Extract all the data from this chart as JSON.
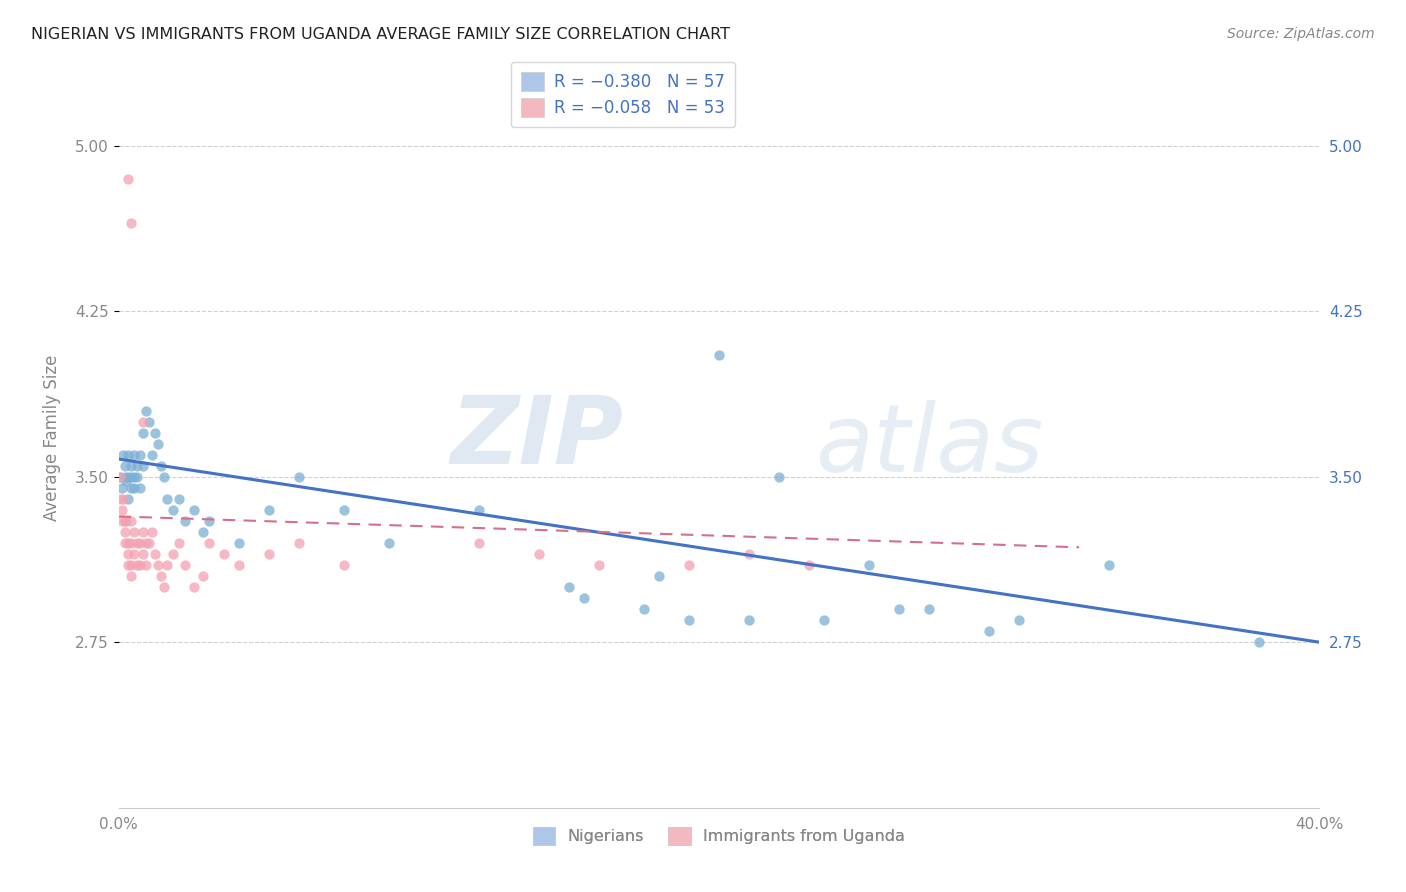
{
  "title": "NIGERIAN VS IMMIGRANTS FROM UGANDA AVERAGE FAMILY SIZE CORRELATION CHART",
  "source": "Source: ZipAtlas.com",
  "ylabel": "Average Family Size",
  "yticks": [
    2.75,
    3.5,
    4.25,
    5.0
  ],
  "xlim": [
    0.0,
    0.4
  ],
  "ylim": [
    2.0,
    5.35
  ],
  "bottom_legend": [
    "Nigerians",
    "Immigrants from Uganda"
  ],
  "bottom_legend_colors": [
    "#aec6e8",
    "#f4b8c1"
  ],
  "nigerians_x": [
    0.0005,
    0.001,
    0.0015,
    0.002,
    0.002,
    0.0025,
    0.003,
    0.003,
    0.003,
    0.004,
    0.004,
    0.004,
    0.005,
    0.005,
    0.005,
    0.006,
    0.006,
    0.007,
    0.007,
    0.008,
    0.008,
    0.009,
    0.01,
    0.011,
    0.012,
    0.013,
    0.014,
    0.015,
    0.016,
    0.018,
    0.02,
    0.022,
    0.025,
    0.028,
    0.03,
    0.04,
    0.05,
    0.06,
    0.075,
    0.09,
    0.12,
    0.15,
    0.175,
    0.2,
    0.22,
    0.25,
    0.27,
    0.3,
    0.33,
    0.155,
    0.18,
    0.19,
    0.21,
    0.235,
    0.26,
    0.29,
    0.38
  ],
  "nigerians_y": [
    3.5,
    3.45,
    3.6,
    3.5,
    3.55,
    3.48,
    3.6,
    3.5,
    3.4,
    3.55,
    3.45,
    3.5,
    3.6,
    3.5,
    3.45,
    3.55,
    3.5,
    3.6,
    3.45,
    3.55,
    3.7,
    3.8,
    3.75,
    3.6,
    3.7,
    3.65,
    3.55,
    3.5,
    3.4,
    3.35,
    3.4,
    3.3,
    3.35,
    3.25,
    3.3,
    3.2,
    3.35,
    3.5,
    3.35,
    3.2,
    3.35,
    3.0,
    2.9,
    4.05,
    3.5,
    3.1,
    2.9,
    2.85,
    3.1,
    2.95,
    3.05,
    2.85,
    2.85,
    2.85,
    2.9,
    2.8,
    2.75
  ],
  "uganda_x": [
    0.0003,
    0.0005,
    0.001,
    0.001,
    0.0015,
    0.002,
    0.002,
    0.002,
    0.0025,
    0.003,
    0.003,
    0.003,
    0.004,
    0.004,
    0.004,
    0.004,
    0.005,
    0.005,
    0.006,
    0.006,
    0.007,
    0.007,
    0.008,
    0.008,
    0.009,
    0.009,
    0.01,
    0.011,
    0.012,
    0.013,
    0.014,
    0.015,
    0.016,
    0.018,
    0.02,
    0.022,
    0.025,
    0.028,
    0.03,
    0.035,
    0.04,
    0.05,
    0.06,
    0.075,
    0.12,
    0.14,
    0.16,
    0.19,
    0.21,
    0.23,
    0.004,
    0.003,
    0.008
  ],
  "uganda_y": [
    3.5,
    3.4,
    3.35,
    3.3,
    3.4,
    3.3,
    3.25,
    3.2,
    3.3,
    3.2,
    3.15,
    3.1,
    3.3,
    3.2,
    3.1,
    3.05,
    3.25,
    3.15,
    3.2,
    3.1,
    3.2,
    3.1,
    3.25,
    3.15,
    3.2,
    3.1,
    3.2,
    3.25,
    3.15,
    3.1,
    3.05,
    3.0,
    3.1,
    3.15,
    3.2,
    3.1,
    3.0,
    3.05,
    3.2,
    3.15,
    3.1,
    3.15,
    3.2,
    3.1,
    3.2,
    3.15,
    3.1,
    3.1,
    3.15,
    3.1,
    4.65,
    4.85,
    3.75
  ],
  "blue_line_x": [
    0.0,
    0.4
  ],
  "blue_line_y": [
    3.58,
    2.75
  ],
  "pink_line_x": [
    0.0,
    0.32
  ],
  "pink_line_y": [
    3.32,
    3.18
  ],
  "watermark_zip": "ZIP",
  "watermark_atlas": "atlas",
  "bg_color": "#ffffff",
  "scatter_alpha": 0.75,
  "scatter_size": 55,
  "grid_color": "#cccccc",
  "blue_dot_color": "#7bafd4",
  "pink_dot_color": "#f4a0b0",
  "blue_line_color": "#4472c4",
  "pink_line_color": "#d4708a",
  "right_axis_color": "#4472c4",
  "legend_r1": "R = −0.380",
  "legend_n1": "N = 57",
  "legend_r2": "R = −0.058",
  "legend_n2": "N = 53"
}
